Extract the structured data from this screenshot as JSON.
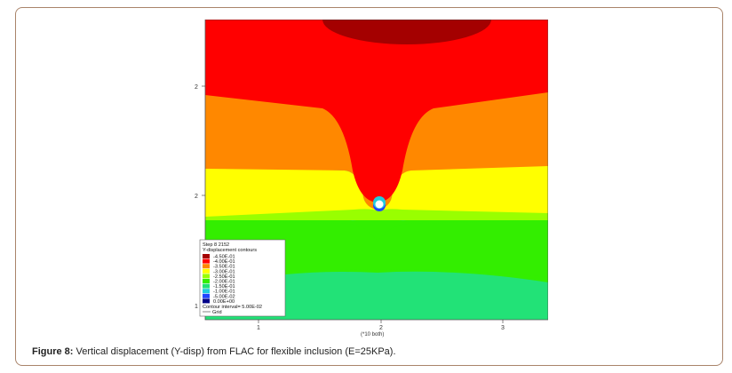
{
  "figure": {
    "caption_label": "Figure 8:",
    "caption_text": " Vertical displacement (Y-disp) from FLAC for flexible inclusion (E=25KPa).",
    "plot": {
      "x_ticks": [
        "1",
        "2",
        "3"
      ],
      "x_axis_note": "(*10 both)",
      "y_ticks": [
        "2",
        "2",
        "1"
      ],
      "legend": {
        "title": "Step 8 2152",
        "subtitle": "Y-displacement contours",
        "entries": [
          {
            "label": "-4.50E-01",
            "color": "#a40000"
          },
          {
            "label": "-4.00E-01",
            "color": "#ff0000"
          },
          {
            "label": "-3.50E-01",
            "color": "#ff8800"
          },
          {
            "label": "-3.00E-01",
            "color": "#ffff00"
          },
          {
            "label": "-2.50E-01",
            "color": "#99ff00"
          },
          {
            "label": "-2.00E-01",
            "color": "#33ee00"
          },
          {
            "label": "-1.50E-01",
            "color": "#22e277"
          },
          {
            "label": "-1.00E-01",
            "color": "#22ccdd"
          },
          {
            "label": "-5.00E-02",
            "color": "#2244ff"
          },
          {
            "label": "0.00E+00",
            "color": "#000088"
          }
        ],
        "contour_interval": "Contour interval= 5.00E-02",
        "grid_label": "Grid"
      }
    }
  }
}
